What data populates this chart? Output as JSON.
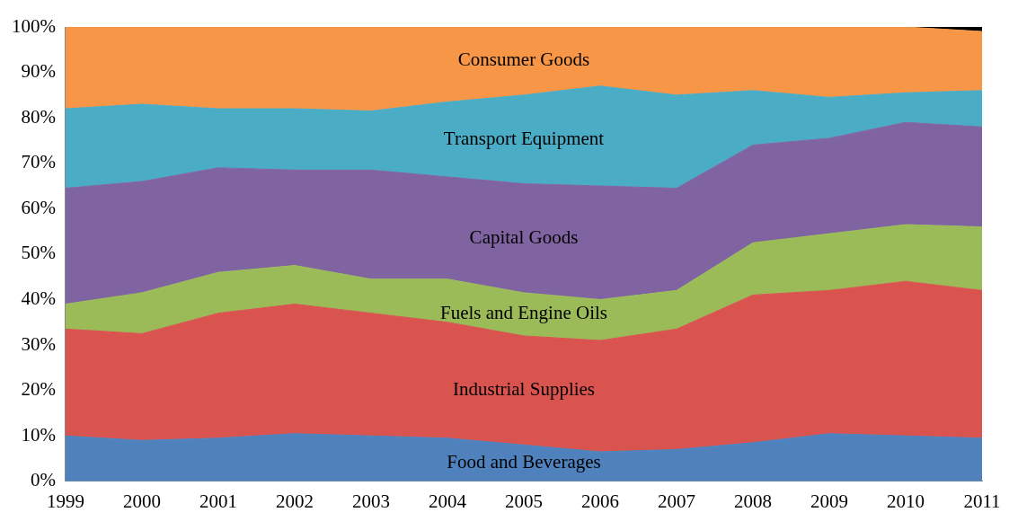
{
  "chart_data": {
    "type": "area",
    "stacked": true,
    "legend": false,
    "grid": false,
    "categories": [
      "1999",
      "2000",
      "2001",
      "2002",
      "2003",
      "2004",
      "2005",
      "2006",
      "2007",
      "2008",
      "2009",
      "2010",
      "2011"
    ],
    "ylim": [
      0,
      100
    ],
    "yticks": [
      {
        "value": 0,
        "label": "0%"
      },
      {
        "value": 10,
        "label": "10%"
      },
      {
        "value": 20,
        "label": "20%"
      },
      {
        "value": 30,
        "label": "30%"
      },
      {
        "value": 40,
        "label": "40%"
      },
      {
        "value": 50,
        "label": "50%"
      },
      {
        "value": 60,
        "label": "60%"
      },
      {
        "value": 70,
        "label": "70%"
      },
      {
        "value": 80,
        "label": "80%"
      },
      {
        "value": 90,
        "label": "90%"
      },
      {
        "value": 100,
        "label": "100%"
      }
    ],
    "series": [
      {
        "name": "Food and Beverages",
        "color": "#4f81bd",
        "values": [
          10,
          9,
          9.5,
          10.5,
          10,
          9.5,
          8,
          6.5,
          7,
          8.5,
          10.5,
          10,
          9.5
        ]
      },
      {
        "name": "Industrial Supplies",
        "color": "#d9534f",
        "values": [
          23.5,
          23.5,
          27.5,
          28.5,
          27,
          25.5,
          24,
          24.5,
          26.5,
          32.5,
          31.5,
          34,
          32.5
        ]
      },
      {
        "name": "Fuels and Engine Oils",
        "color": "#9bbb59",
        "values": [
          5.5,
          9,
          9,
          8.5,
          7.5,
          9.5,
          9.5,
          9,
          8.5,
          11.5,
          12.5,
          12.5,
          14
        ]
      },
      {
        "name": "Capital Goods",
        "color": "#8064a2",
        "values": [
          25.5,
          24.5,
          23,
          21,
          24,
          22.5,
          24,
          25,
          22.5,
          21.5,
          21,
          22.5,
          22
        ]
      },
      {
        "name": "Transport Equipment",
        "color": "#4bacc6",
        "values": [
          17.5,
          17,
          13,
          13.5,
          13,
          16.5,
          19.5,
          22,
          20.5,
          12,
          9,
          6.5,
          8
        ]
      },
      {
        "name": "Consumer Goods",
        "color": "#f79646",
        "values": [
          18,
          17,
          18,
          18,
          18.5,
          16.5,
          15,
          13,
          15,
          14,
          15.5,
          14.5,
          13
        ]
      },
      {
        "color": "#000000",
        "values": [
          0,
          0,
          0,
          0,
          0,
          0,
          0,
          0,
          0,
          0,
          0,
          0,
          1
        ]
      }
    ]
  }
}
